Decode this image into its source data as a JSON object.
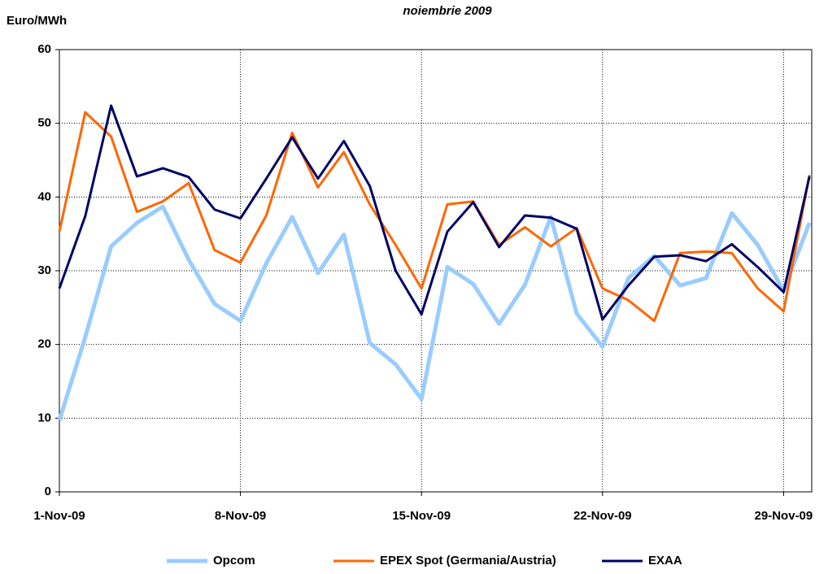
{
  "chart_data": {
    "type": "line",
    "title": "noiembrie 2009",
    "y_label": "Euro/MWh",
    "categories": [
      "1-Nov-09",
      null,
      null,
      null,
      null,
      null,
      null,
      "8-Nov-09",
      null,
      null,
      null,
      null,
      null,
      null,
      "15-Nov-09",
      null,
      null,
      null,
      null,
      null,
      null,
      "22-Nov-09",
      null,
      null,
      null,
      null,
      null,
      null,
      "29-Nov-09",
      null
    ],
    "series": [
      {
        "name": "Opcom",
        "color": "#99ccff",
        "values": [
          9.7,
          21,
          33.3,
          36.5,
          38.7,
          31.5,
          25.5,
          23.2,
          31,
          37.3,
          29.7,
          34.9,
          20.2,
          17.3,
          12.6,
          30.5,
          28.2,
          22.8,
          28.1,
          37.3,
          24.2,
          19.7,
          29,
          32,
          28,
          29,
          37.8,
          33.5,
          27.3,
          36.5
        ]
      },
      {
        "name": "EPEX Spot (Germania/Austria)",
        "color": "#ff6600",
        "values": [
          35.3,
          51.5,
          48.2,
          38,
          39.4,
          41.9,
          32.8,
          31.1,
          37.5,
          48.7,
          41.3,
          46.1,
          39,
          33.5,
          27.6,
          39,
          39.4,
          33.5,
          35.9,
          33.3,
          35.8,
          27.6,
          26,
          23.2,
          32.4,
          32.6,
          32.4,
          27.6,
          24.5,
          43
        ]
      },
      {
        "name": "EXAA",
        "color": "#000066",
        "values": [
          27.6,
          37.4,
          52.4,
          42.8,
          43.9,
          42.7,
          38.3,
          37.1,
          42.5,
          48.1,
          42.5,
          47.6,
          41.5,
          30,
          24.1,
          35.3,
          39.3,
          33.2,
          37.5,
          37.2,
          35.7,
          23.4,
          28,
          31.9,
          32.1,
          31.3,
          33.6,
          30.5,
          27.1,
          42.8
        ]
      }
    ],
    "ylim": [
      0,
      60
    ],
    "yticks": [
      0,
      10,
      20,
      30,
      40,
      50,
      60
    ],
    "grid": true,
    "legend": "bottom"
  }
}
